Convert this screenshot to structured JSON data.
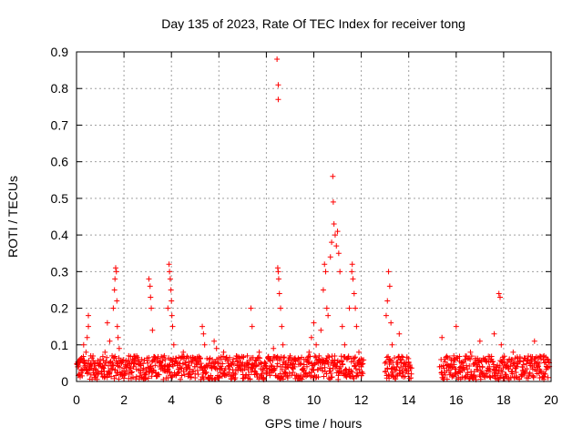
{
  "chart_data": {
    "type": "scatter",
    "title": "Day 135 of 2023, Rate Of TEC Index for receiver tong",
    "xlabel": "GPS time / hours",
    "ylabel": "ROTI / TECUs",
    "xlim": [
      0,
      20
    ],
    "ylim": [
      0,
      0.9
    ],
    "xticks": [
      0,
      2,
      4,
      6,
      8,
      10,
      12,
      14,
      16,
      18,
      20
    ],
    "yticks": [
      0,
      0.1,
      0.2,
      0.3,
      0.4,
      0.5,
      0.6,
      0.7,
      0.8,
      0.9
    ],
    "grid": true,
    "marker": "+",
    "color": "#ff0000",
    "data_gaps_hours": [
      [
        12.1,
        13.0
      ],
      [
        14.1,
        15.3
      ]
    ],
    "series": [
      {
        "name": "ROTI",
        "points": [
          [
            0.05,
            0.04
          ],
          [
            0.1,
            0.02
          ],
          [
            0.15,
            0.06
          ],
          [
            0.2,
            0.03
          ],
          [
            0.3,
            0.1
          ],
          [
            0.35,
            0.05
          ],
          [
            0.4,
            0.08
          ],
          [
            0.45,
            0.12
          ],
          [
            0.5,
            0.18
          ],
          [
            0.5,
            0.15
          ],
          [
            0.55,
            0.04
          ],
          [
            0.6,
            0.07
          ],
          [
            0.7,
            0.03
          ],
          [
            0.8,
            0.05
          ],
          [
            0.9,
            0.02
          ],
          [
            1.0,
            0.06
          ],
          [
            1.1,
            0.04
          ],
          [
            1.2,
            0.08
          ],
          [
            1.3,
            0.16
          ],
          [
            1.4,
            0.11
          ],
          [
            1.5,
            0.07
          ],
          [
            1.55,
            0.2
          ],
          [
            1.6,
            0.25
          ],
          [
            1.62,
            0.28
          ],
          [
            1.65,
            0.31
          ],
          [
            1.68,
            0.3
          ],
          [
            1.7,
            0.22
          ],
          [
            1.72,
            0.15
          ],
          [
            1.75,
            0.12
          ],
          [
            1.8,
            0.09
          ],
          [
            1.9,
            0.05
          ],
          [
            2.0,
            0.03
          ],
          [
            2.2,
            0.07
          ],
          [
            2.4,
            0.04
          ],
          [
            2.6,
            0.06
          ],
          [
            2.8,
            0.03
          ],
          [
            3.0,
            0.05
          ],
          [
            3.05,
            0.28
          ],
          [
            3.1,
            0.26
          ],
          [
            3.12,
            0.23
          ],
          [
            3.15,
            0.2
          ],
          [
            3.2,
            0.14
          ],
          [
            3.3,
            0.06
          ],
          [
            3.5,
            0.04
          ],
          [
            3.7,
            0.07
          ],
          [
            3.85,
            0.2
          ],
          [
            3.9,
            0.32
          ],
          [
            3.92,
            0.3
          ],
          [
            3.95,
            0.28
          ],
          [
            3.98,
            0.25
          ],
          [
            4.0,
            0.22
          ],
          [
            4.02,
            0.18
          ],
          [
            4.05,
            0.15
          ],
          [
            4.1,
            0.1
          ],
          [
            4.3,
            0.05
          ],
          [
            4.5,
            0.08
          ],
          [
            4.7,
            0.04
          ],
          [
            4.9,
            0.06
          ],
          [
            5.1,
            0.03
          ],
          [
            5.3,
            0.15
          ],
          [
            5.35,
            0.13
          ],
          [
            5.4,
            0.1
          ],
          [
            5.6,
            0.06
          ],
          [
            5.8,
            0.11
          ],
          [
            5.9,
            0.09
          ],
          [
            6.0,
            0.05
          ],
          [
            6.2,
            0.08
          ],
          [
            6.4,
            0.04
          ],
          [
            6.6,
            0.06
          ],
          [
            6.8,
            0.03
          ],
          [
            7.0,
            0.05
          ],
          [
            7.2,
            0.07
          ],
          [
            7.35,
            0.2
          ],
          [
            7.4,
            0.15
          ],
          [
            7.5,
            0.05
          ],
          [
            7.7,
            0.08
          ],
          [
            7.9,
            0.04
          ],
          [
            8.1,
            0.06
          ],
          [
            8.3,
            0.09
          ],
          [
            8.45,
            0.88
          ],
          [
            8.5,
            0.81
          ],
          [
            8.5,
            0.77
          ],
          [
            8.48,
            0.31
          ],
          [
            8.5,
            0.3
          ],
          [
            8.52,
            0.28
          ],
          [
            8.55,
            0.24
          ],
          [
            8.6,
            0.2
          ],
          [
            8.65,
            0.15
          ],
          [
            8.7,
            0.1
          ],
          [
            8.8,
            0.05
          ],
          [
            9.0,
            0.07
          ],
          [
            9.2,
            0.04
          ],
          [
            9.4,
            0.06
          ],
          [
            9.6,
            0.03
          ],
          [
            9.8,
            0.08
          ],
          [
            9.9,
            0.12
          ],
          [
            10.0,
            0.16
          ],
          [
            10.1,
            0.1
          ],
          [
            10.2,
            0.06
          ],
          [
            10.3,
            0.14
          ],
          [
            10.4,
            0.25
          ],
          [
            10.45,
            0.32
          ],
          [
            10.5,
            0.3
          ],
          [
            10.55,
            0.2
          ],
          [
            10.6,
            0.18
          ],
          [
            10.7,
            0.34
          ],
          [
            10.75,
            0.38
          ],
          [
            10.8,
            0.56
          ],
          [
            10.82,
            0.49
          ],
          [
            10.85,
            0.43
          ],
          [
            10.9,
            0.4
          ],
          [
            10.95,
            0.37
          ],
          [
            11.0,
            0.41
          ],
          [
            11.05,
            0.35
          ],
          [
            11.1,
            0.3
          ],
          [
            11.2,
            0.15
          ],
          [
            11.3,
            0.1
          ],
          [
            11.4,
            0.06
          ],
          [
            11.5,
            0.2
          ],
          [
            11.6,
            0.3
          ],
          [
            11.62,
            0.32
          ],
          [
            11.65,
            0.28
          ],
          [
            11.7,
            0.24
          ],
          [
            11.75,
            0.2
          ],
          [
            11.8,
            0.15
          ],
          [
            11.9,
            0.08
          ],
          [
            12.0,
            0.04
          ],
          [
            13.0,
            0.05
          ],
          [
            13.05,
            0.18
          ],
          [
            13.1,
            0.22
          ],
          [
            13.15,
            0.3
          ],
          [
            13.2,
            0.26
          ],
          [
            13.25,
            0.16
          ],
          [
            13.3,
            0.1
          ],
          [
            13.5,
            0.04
          ],
          [
            13.6,
            0.13
          ],
          [
            13.7,
            0.06
          ],
          [
            13.9,
            0.03
          ],
          [
            14.0,
            0.05
          ],
          [
            15.3,
            0.04
          ],
          [
            15.4,
            0.12
          ],
          [
            15.5,
            0.06
          ],
          [
            15.7,
            0.03
          ],
          [
            15.9,
            0.07
          ],
          [
            16.0,
            0.15
          ],
          [
            16.2,
            0.04
          ],
          [
            16.4,
            0.06
          ],
          [
            16.6,
            0.08
          ],
          [
            16.8,
            0.05
          ],
          [
            17.0,
            0.11
          ],
          [
            17.2,
            0.06
          ],
          [
            17.4,
            0.04
          ],
          [
            17.6,
            0.13
          ],
          [
            17.8,
            0.24
          ],
          [
            17.85,
            0.23
          ],
          [
            17.9,
            0.1
          ],
          [
            18.0,
            0.06
          ],
          [
            18.2,
            0.04
          ],
          [
            18.4,
            0.08
          ],
          [
            18.6,
            0.05
          ],
          [
            18.8,
            0.03
          ],
          [
            19.0,
            0.06
          ],
          [
            19.2,
            0.04
          ],
          [
            19.3,
            0.11
          ],
          [
            19.5,
            0.05
          ],
          [
            19.7,
            0.07
          ],
          [
            19.85,
            0.04
          ]
        ]
      }
    ]
  }
}
